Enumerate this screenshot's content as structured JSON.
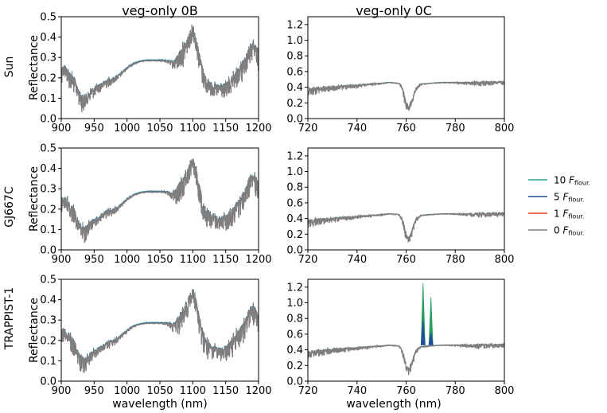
{
  "chart_data": {
    "type": "line",
    "column_titles": [
      "veg-only 0B",
      "veg-only 0C"
    ],
    "row_labels": [
      "Sun",
      "GJ667C",
      "TRAPPIST-1"
    ],
    "xlabel": "wavelength (nm)",
    "ylabel": "Reflectance",
    "legend": {
      "placement": "right",
      "entries": [
        {
          "value": "10",
          "symbol": "F",
          "sub": "flour.",
          "color": "#2ca6a4"
        },
        {
          "value": "5",
          "symbol": "F",
          "sub": "flour.",
          "color": "#1f4e9c"
        },
        {
          "value": "1",
          "symbol": "F",
          "sub": "flour.",
          "color": "#e8401c"
        },
        {
          "value": "0",
          "symbol": "F",
          "sub": "flour.",
          "color": "#7f7f7f"
        }
      ]
    },
    "panels": [
      {
        "row": 0,
        "col": 0,
        "xlim": [
          900,
          1200
        ],
        "ylim": [
          0,
          0.5
        ],
        "xticks": [
          900,
          950,
          1000,
          1050,
          1100,
          1150,
          1200
        ],
        "yticks": [
          0.0,
          0.1,
          0.2,
          0.3,
          0.4,
          0.5
        ],
        "ytick_labels": [
          "0.0",
          "0.1",
          "0.2",
          "0.3",
          "0.4",
          "0.5"
        ],
        "profile": "B",
        "peaks": []
      },
      {
        "row": 0,
        "col": 1,
        "xlim": [
          720,
          800
        ],
        "ylim": [
          0,
          1.3
        ],
        "xticks": [
          720,
          740,
          760,
          780,
          800
        ],
        "yticks": [
          0.0,
          0.2,
          0.4,
          0.6,
          0.8,
          1.0,
          1.2
        ],
        "ytick_labels": [
          "0.0",
          "0.2",
          "0.4",
          "0.6",
          "0.8",
          "1.0",
          "1.2"
        ],
        "profile": "C",
        "peaks": []
      },
      {
        "row": 1,
        "col": 0,
        "xlim": [
          900,
          1200
        ],
        "ylim": [
          0,
          0.5
        ],
        "xticks": [
          900,
          950,
          1000,
          1050,
          1100,
          1150,
          1200
        ],
        "yticks": [
          0.0,
          0.1,
          0.2,
          0.3,
          0.4,
          0.5
        ],
        "ytick_labels": [
          "0.0",
          "0.1",
          "0.2",
          "0.3",
          "0.4",
          "0.5"
        ],
        "profile": "B",
        "peaks": []
      },
      {
        "row": 1,
        "col": 1,
        "xlim": [
          720,
          800
        ],
        "ylim": [
          0,
          1.3
        ],
        "xticks": [
          720,
          740,
          760,
          780,
          800
        ],
        "yticks": [
          0.0,
          0.2,
          0.4,
          0.6,
          0.8,
          1.0,
          1.2
        ],
        "ytick_labels": [
          "0.0",
          "0.2",
          "0.4",
          "0.6",
          "0.8",
          "1.0",
          "1.2"
        ],
        "profile": "C",
        "peaks": []
      },
      {
        "row": 2,
        "col": 0,
        "xlim": [
          900,
          1200
        ],
        "ylim": [
          0,
          0.5
        ],
        "xticks": [
          900,
          950,
          1000,
          1050,
          1100,
          1150,
          1200
        ],
        "yticks": [
          0.0,
          0.1,
          0.2,
          0.3,
          0.4,
          0.5
        ],
        "ytick_labels": [
          "0.0",
          "0.1",
          "0.2",
          "0.3",
          "0.4",
          "0.5"
        ],
        "profile": "B",
        "peaks": []
      },
      {
        "row": 2,
        "col": 1,
        "xlim": [
          720,
          800
        ],
        "ylim": [
          0,
          1.3
        ],
        "xticks": [
          720,
          740,
          760,
          780,
          800
        ],
        "yticks": [
          0.0,
          0.2,
          0.4,
          0.6,
          0.8,
          1.0,
          1.2
        ],
        "ytick_labels": [
          "0.0",
          "0.2",
          "0.4",
          "0.6",
          "0.8",
          "1.0",
          "1.2"
        ],
        "profile": "C",
        "peaks": [
          {
            "x": 766.9,
            "y": 1.25,
            "color": "#2a9d5f"
          },
          {
            "x": 770.1,
            "y": 1.07,
            "color": "#2a9d5f"
          },
          {
            "x": 766.9,
            "y": 0.78,
            "color": "#1f4e9c"
          },
          {
            "x": 770.1,
            "y": 0.62,
            "color": "#1f4e9c"
          }
        ]
      }
    ],
    "profiles": {
      "B": {
        "x": [
          900,
          905,
          910,
          915,
          920,
          925,
          930,
          935,
          940,
          945,
          950,
          960,
          970,
          980,
          990,
          1000,
          1010,
          1020,
          1030,
          1040,
          1050,
          1060,
          1070,
          1075,
          1080,
          1085,
          1090,
          1095,
          1100,
          1105,
          1110,
          1115,
          1120,
          1130,
          1140,
          1150,
          1160,
          1170,
          1180,
          1185,
          1190,
          1195,
          1200
        ],
        "y": [
          0.25,
          0.26,
          0.24,
          0.22,
          0.2,
          0.15,
          0.12,
          0.11,
          0.12,
          0.14,
          0.15,
          0.17,
          0.19,
          0.2,
          0.22,
          0.25,
          0.27,
          0.28,
          0.285,
          0.285,
          0.285,
          0.285,
          0.28,
          0.3,
          0.33,
          0.35,
          0.38,
          0.42,
          0.45,
          0.4,
          0.32,
          0.25,
          0.2,
          0.17,
          0.16,
          0.17,
          0.2,
          0.25,
          0.3,
          0.35,
          0.37,
          0.36,
          0.33
        ],
        "noise": [
          0.08,
          0.06,
          0.08,
          0.1,
          0.08,
          0.07,
          0.09,
          0.08,
          0.06,
          0.05,
          0.05,
          0.04,
          0.04,
          0.03,
          0.02,
          0.01,
          0.005,
          0.003,
          0.003,
          0.003,
          0.003,
          0.01,
          0.04,
          0.08,
          0.1,
          0.1,
          0.09,
          0.08,
          0.06,
          0.08,
          0.1,
          0.1,
          0.09,
          0.07,
          0.07,
          0.08,
          0.09,
          0.1,
          0.1,
          0.1,
          0.1,
          0.1,
          0.1
        ]
      },
      "C": {
        "x": [
          720,
          725,
          730,
          735,
          740,
          745,
          750,
          753,
          757,
          758,
          759,
          760,
          761,
          762,
          764,
          766,
          770,
          775,
          780,
          785,
          790,
          795,
          800
        ],
        "y": [
          0.38,
          0.4,
          0.41,
          0.42,
          0.43,
          0.44,
          0.45,
          0.46,
          0.45,
          0.42,
          0.35,
          0.2,
          0.15,
          0.22,
          0.4,
          0.44,
          0.45,
          0.46,
          0.46,
          0.46,
          0.47,
          0.47,
          0.47
        ],
        "noise": [
          0.1,
          0.08,
          0.07,
          0.05,
          0.04,
          0.02,
          0.01,
          0.005,
          0.005,
          0.04,
          0.1,
          0.1,
          0.08,
          0.1,
          0.06,
          0.01,
          0.005,
          0.005,
          0.01,
          0.03,
          0.06,
          0.05,
          0.04
        ]
      }
    }
  }
}
